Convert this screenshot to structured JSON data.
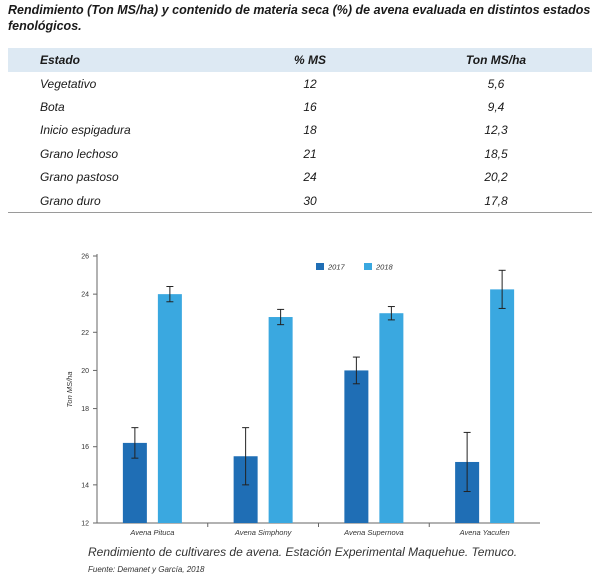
{
  "title": "Rendimiento (Ton MS/ha) y contenido de materia seca (%) de avena evaluada en distintos estados fenológicos.",
  "table": {
    "headers": [
      "Estado",
      "% MS",
      "Ton MS/ha"
    ],
    "rows": [
      [
        "Vegetativo",
        "12",
        "5,6"
      ],
      [
        "Bota",
        "16",
        "9,4"
      ],
      [
        "Inicio espigadura",
        "18",
        "12,3"
      ],
      [
        "Grano lechoso",
        "21",
        "18,5"
      ],
      [
        "Grano pastoso",
        "24",
        "20,2"
      ],
      [
        "Grano duro",
        "30",
        "17,8"
      ]
    ]
  },
  "chart_data": {
    "type": "bar",
    "categories": [
      "Avena Pituca",
      "Avena Simphony",
      "Avena Supernova",
      "Avena Yacufen"
    ],
    "series": [
      {
        "name": "2017",
        "color": "#1f6eb5",
        "values": [
          16.2,
          15.5,
          20.0,
          15.2
        ],
        "errors": [
          0.8,
          1.5,
          0.7,
          1.55
        ]
      },
      {
        "name": "2018",
        "color": "#3aa8e0",
        "values": [
          24.0,
          22.8,
          23.0,
          24.25
        ],
        "errors": [
          0.4,
          0.4,
          0.35,
          1.0
        ]
      }
    ],
    "ylabel": "Ton MS/ha",
    "ylim": [
      12,
      26
    ],
    "yticks": [
      12,
      14,
      16,
      18,
      20,
      22,
      24,
      26
    ],
    "grid": false,
    "legend_position": "top-center"
  },
  "caption": "Rendimiento de cultivares de avena. Estación Experimental Maquehue. Temuco.",
  "source": "Fuente: Demanet y García, 2018"
}
